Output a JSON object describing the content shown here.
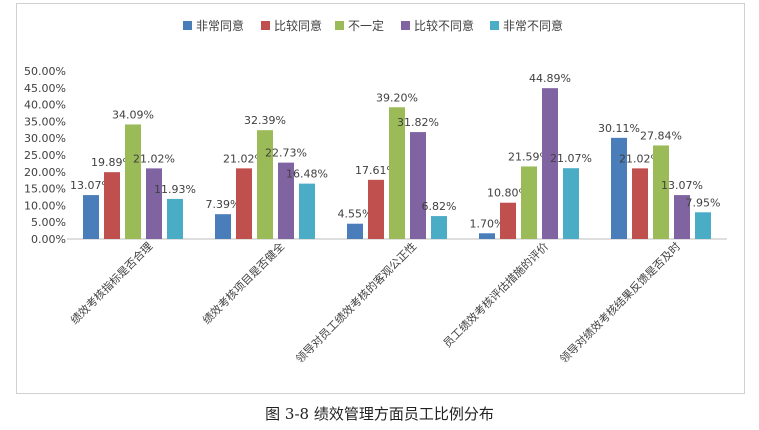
{
  "caption": "图 3-8 绩效管理方面员工比例分布",
  "chart_data": {
    "type": "bar",
    "title": "",
    "xlabel": "",
    "ylabel": "",
    "ylim": [
      0,
      50
    ],
    "y_ticks": [
      "0.00%",
      "5.00%",
      "10.00%",
      "15.00%",
      "20.00%",
      "25.00%",
      "30.00%",
      "35.00%",
      "40.00%",
      "45.00%",
      "50.00%"
    ],
    "grid": false,
    "legend_position": "top",
    "categories": [
      "绩效考核指标是否合理",
      "绩效考核项目是否健全",
      "领导对员工绩效考核的客观公正性",
      "员工绩效考核评估措施的评价",
      "领导对绩效考核结果反馈是否及时"
    ],
    "series": [
      {
        "name": "非常同意",
        "color": "#4a7ebb",
        "values": [
          13.07,
          7.39,
          4.55,
          1.7,
          30.11
        ],
        "labels": [
          "13.07%",
          "7.39%",
          "4.55%",
          "1.70%",
          "30.11%"
        ]
      },
      {
        "name": "比较同意",
        "color": "#c0504d",
        "values": [
          19.89,
          21.02,
          17.61,
          10.8,
          21.02
        ],
        "labels": [
          "19.89%",
          "21.02%",
          "17.61%",
          "10.80%",
          "21.02%"
        ]
      },
      {
        "name": "不一定",
        "color": "#9bbb59",
        "values": [
          34.09,
          32.39,
          39.2,
          21.59,
          27.84
        ],
        "labels": [
          "34.09%",
          "32.39%",
          "39.20%",
          "21.59%",
          "27.84%"
        ]
      },
      {
        "name": "比较不同意",
        "color": "#8064a2",
        "values": [
          21.02,
          22.73,
          31.82,
          44.89,
          13.07
        ],
        "labels": [
          "21.02%",
          "22.73%",
          "31.82%",
          "44.89%",
          "13.07%"
        ]
      },
      {
        "name": "非常不同意",
        "color": "#4bacc6",
        "values": [
          11.93,
          16.48,
          6.82,
          21.07,
          7.95
        ],
        "labels": [
          "11.93%",
          "16.48%",
          "6.82%",
          "21.07%",
          "7.95%"
        ]
      }
    ]
  }
}
